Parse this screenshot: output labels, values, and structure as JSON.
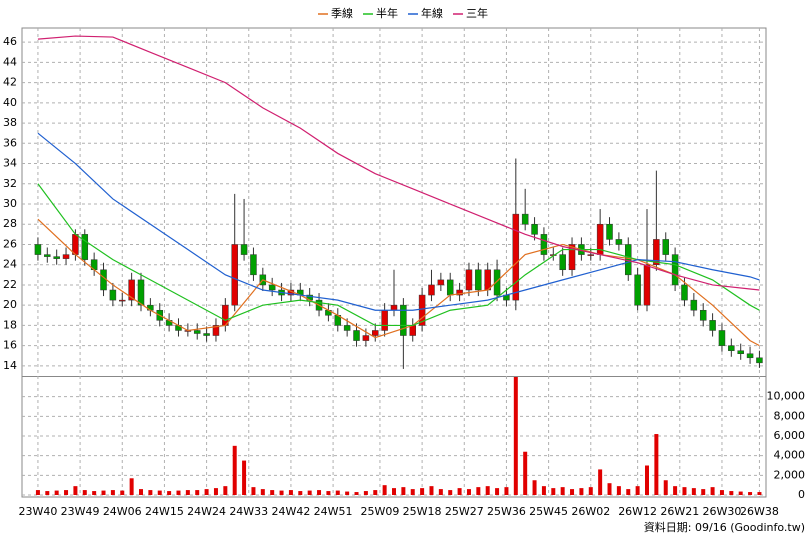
{
  "chart_data": {
    "type": "candlestick",
    "x": [
      0,
      2,
      4,
      6,
      8,
      10,
      12,
      14,
      16,
      18,
      20,
      22,
      24,
      26,
      28,
      30,
      32,
      34,
      36,
      38,
      40,
      42,
      44,
      46,
      48,
      50,
      52,
      54,
      56,
      58,
      60,
      62,
      64,
      66,
      68,
      70,
      72,
      74,
      76,
      78,
      80,
      82,
      84,
      86,
      88,
      90,
      92,
      94,
      96,
      98,
      100,
      102,
      104,
      106,
      108,
      110,
      112,
      114,
      116,
      118,
      120,
      122,
      124,
      126,
      128,
      130,
      132,
      134,
      136,
      138,
      140,
      142,
      144,
      146,
      148,
      150,
      152,
      154
    ],
    "open": [
      26,
      25,
      24.8,
      24.6,
      25,
      27,
      24.5,
      23.5,
      21.5,
      20.5,
      20.5,
      22.5,
      20,
      19.5,
      18.5,
      18,
      17.5,
      17.5,
      17.2,
      17,
      18,
      20,
      26,
      25,
      23,
      22,
      21.5,
      21,
      21.5,
      21,
      20.5,
      19.5,
      19,
      18,
      17.5,
      16.5,
      17,
      17.5,
      19.5,
      20,
      17,
      18,
      21,
      22,
      22.5,
      21,
      21.5,
      23.5,
      21.5,
      23.5,
      21,
      20.5,
      29,
      28,
      27,
      25,
      25,
      23.5,
      26,
      25,
      25,
      28,
      26.5,
      26,
      23,
      20,
      24,
      26.5,
      25,
      22,
      20.5,
      19.5,
      18.5,
      17.5,
      16,
      15.5,
      15.2,
      14.8
    ],
    "high": [
      26.7,
      25.7,
      25.5,
      25.7,
      27.5,
      27.5,
      25.2,
      24.2,
      22.2,
      21.2,
      23.2,
      23.2,
      20.7,
      20.2,
      19.2,
      18.7,
      18.2,
      18.2,
      17.9,
      18.7,
      20.7,
      31,
      30.5,
      25.7,
      23.7,
      22.7,
      22.2,
      22.2,
      22.2,
      21.7,
      21.2,
      20.2,
      19.7,
      18.7,
      18.2,
      17.7,
      18.2,
      20.2,
      23.5,
      20.7,
      18.7,
      21.7,
      23.5,
      23.2,
      23.2,
      22.2,
      24.2,
      24.2,
      24.2,
      24.5,
      21.7,
      34.5,
      31.5,
      28.7,
      27.7,
      25.7,
      25.7,
      26.7,
      26.7,
      25.7,
      29.5,
      28.7,
      27.2,
      26.7,
      23.7,
      29.5,
      33.3,
      27.2,
      25.7,
      22.7,
      21.2,
      20.2,
      19.2,
      18.2,
      16.7,
      16.2,
      15.9,
      15.5
    ],
    "low": [
      24.4,
      24.2,
      24,
      24,
      24.4,
      23.9,
      22.9,
      20.9,
      19.9,
      19.9,
      19.9,
      19.4,
      18.9,
      17.9,
      17.4,
      16.9,
      16.9,
      16.6,
      16.4,
      16.4,
      17.4,
      19.4,
      24.4,
      22.4,
      21.4,
      20.9,
      20.4,
      20.4,
      20.4,
      19.9,
      18.9,
      18.4,
      17.4,
      16.9,
      15.9,
      15.9,
      16.4,
      16.9,
      18.9,
      13.7,
      16.4,
      17.4,
      20.4,
      21.4,
      20.4,
      20.4,
      20.9,
      20.9,
      20.9,
      20.4,
      19.9,
      19.5,
      27.4,
      26.4,
      24.4,
      24.4,
      22.9,
      22.9,
      24.4,
      24.4,
      24.4,
      25.9,
      25.4,
      22.4,
      19.5,
      19.4,
      23.4,
      24.4,
      21.4,
      19.9,
      18.9,
      17.9,
      16.9,
      15.4,
      14.9,
      14.6,
      14.2,
      13.8
    ],
    "close": [
      25,
      24.8,
      24.6,
      25,
      27,
      24.5,
      23.5,
      21.5,
      20.5,
      20.5,
      22.5,
      20,
      19.5,
      18.5,
      18,
      17.5,
      17.5,
      17.2,
      17,
      18,
      20,
      26,
      25,
      23,
      22,
      21.5,
      21,
      21.5,
      21,
      20.5,
      19.5,
      19,
      18,
      17.5,
      16.5,
      17,
      17.5,
      19.5,
      20,
      17,
      18,
      21,
      22,
      22.5,
      21,
      21.5,
      23.5,
      21.5,
      23.5,
      21,
      20.5,
      29,
      28,
      27,
      25,
      25,
      23.5,
      26,
      25,
      25,
      28,
      26.5,
      26,
      23,
      20,
      24,
      26.5,
      25,
      22,
      20.5,
      19.5,
      18.5,
      17.5,
      16,
      15.5,
      15.2,
      14.8,
      14.3
    ],
    "volume": [
      500,
      400,
      450,
      500,
      900,
      500,
      400,
      450,
      500,
      450,
      1700,
      600,
      500,
      450,
      400,
      450,
      500,
      500,
      600,
      700,
      900,
      5000,
      3500,
      800,
      600,
      500,
      450,
      500,
      400,
      450,
      500,
      400,
      450,
      350,
      300,
      400,
      500,
      1000,
      700,
      800,
      600,
      700,
      900,
      600,
      500,
      700,
      600,
      800,
      900,
      700,
      800,
      12000,
      4400,
      1500,
      900,
      700,
      800,
      600,
      700,
      800,
      2600,
      1200,
      900,
      600,
      900,
      3000,
      6200,
      1500,
      900,
      800,
      700,
      600,
      800,
      500,
      400,
      350,
      300,
      300
    ],
    "up_color": "#e00000",
    "down_color": "#00a000",
    "volume_color": "#e00000",
    "series": [
      {
        "name": "季線",
        "color": "#e07020",
        "x": [
          0,
          8,
          16,
          24,
          32,
          40,
          48,
          56,
          64,
          72,
          80,
          88,
          96,
          104,
          112,
          120,
          128,
          136,
          144,
          152,
          154
        ],
        "values": [
          28.5,
          25,
          22,
          19.5,
          17.5,
          18,
          22.5,
          21,
          19,
          16.8,
          18,
          21,
          21.5,
          25,
          26,
          25,
          24.5,
          23,
          20,
          16.5,
          16
        ]
      },
      {
        "name": "半年",
        "color": "#20c020",
        "x": [
          0,
          8,
          16,
          24,
          32,
          40,
          48,
          56,
          64,
          72,
          80,
          88,
          96,
          104,
          112,
          120,
          128,
          136,
          144,
          152,
          154
        ],
        "values": [
          32,
          27,
          24.5,
          22.5,
          20.5,
          18.5,
          20,
          20.5,
          20,
          18,
          18,
          19.5,
          20,
          23,
          25.5,
          25.5,
          24.5,
          24,
          22.5,
          20,
          19.5
        ]
      },
      {
        "name": "年線",
        "color": "#2060d0",
        "x": [
          0,
          8,
          16,
          24,
          32,
          40,
          48,
          56,
          64,
          72,
          80,
          88,
          96,
          104,
          112,
          120,
          128,
          136,
          144,
          152,
          154
        ],
        "values": [
          37,
          34,
          30.5,
          28,
          25.5,
          23,
          21.5,
          21,
          20.5,
          19.5,
          19.5,
          20,
          20.5,
          21.5,
          22.5,
          23.5,
          24.5,
          24.3,
          23.5,
          22.8,
          22.5
        ]
      },
      {
        "name": "三年",
        "color": "#d02070",
        "x": [
          0,
          8,
          16,
          24,
          32,
          40,
          48,
          56,
          64,
          72,
          80,
          88,
          96,
          104,
          112,
          120,
          128,
          136,
          144,
          152,
          154
        ],
        "values": [
          46.3,
          46.6,
          46.5,
          45,
          43.5,
          42,
          39.5,
          37.5,
          35,
          33,
          31.5,
          30,
          28.5,
          27,
          25.8,
          25,
          24.2,
          23,
          22,
          21.6,
          21.5
        ]
      }
    ],
    "xlim": [
      -3.4,
      155.4
    ],
    "xticks": [
      {
        "value": 0,
        "label": "23W40"
      },
      {
        "value": 9,
        "label": "23W49"
      },
      {
        "value": 18,
        "label": "24W06"
      },
      {
        "value": 27,
        "label": "24W15"
      },
      {
        "value": 36,
        "label": "24W24"
      },
      {
        "value": 45,
        "label": "24W33"
      },
      {
        "value": 54,
        "label": "24W42"
      },
      {
        "value": 63,
        "label": "24W51"
      },
      {
        "value": 73,
        "label": "25W09"
      },
      {
        "value": 82,
        "label": "25W18"
      },
      {
        "value": 91,
        "label": "25W27"
      },
      {
        "value": 100,
        "label": "25W36"
      },
      {
        "value": 109,
        "label": "25W45"
      },
      {
        "value": 118,
        "label": "26W02"
      },
      {
        "value": 128,
        "label": "26W12"
      },
      {
        "value": 137,
        "label": "26W21"
      },
      {
        "value": 146,
        "label": "26W30"
      },
      {
        "value": 154,
        "label": "26W38"
      }
    ],
    "ylim": [
      13,
      47.2
    ],
    "yticks": [
      14,
      16,
      18,
      20,
      22,
      24,
      26,
      28,
      30,
      32,
      34,
      36,
      38,
      40,
      42,
      44,
      46
    ],
    "volume_ylim": [
      0,
      12000
    ],
    "volume_yticks": [
      0,
      {
        "value": 2000,
        "label": "2,000"
      },
      {
        "value": 4000,
        "label": "4,000"
      },
      {
        "value": 6000,
        "label": "6,000"
      },
      {
        "value": 8000,
        "label": "8,000"
      },
      {
        "value": 10000,
        "label": "10,000"
      }
    ],
    "grid": true,
    "footer": "資料日期: 09/16 (Goodinfo.tw)"
  }
}
